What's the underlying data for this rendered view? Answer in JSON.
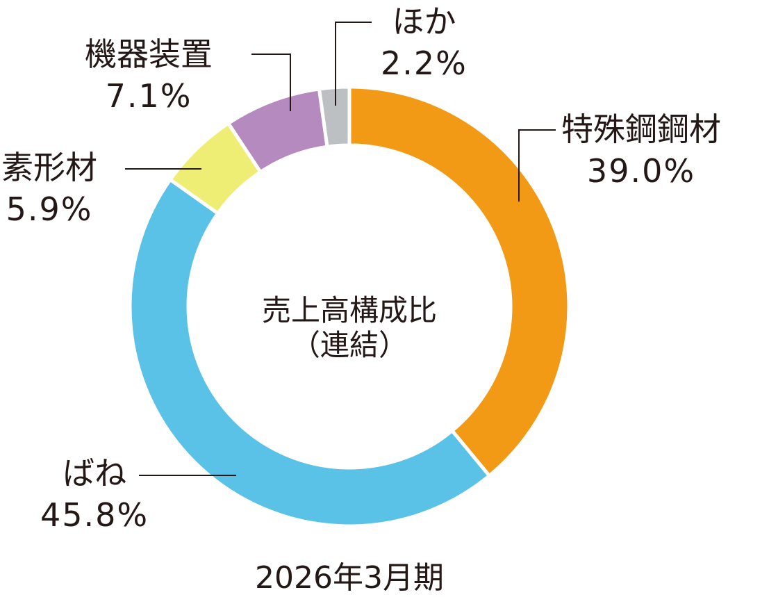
{
  "chart_data": {
    "type": "pie",
    "center_label": {
      "line1": "売上高構成比",
      "line2": "（連結）"
    },
    "period": "2026年3月期",
    "slices": [
      {
        "name": "特殊鋼鋼材",
        "value": 39.0,
        "label": "39.0%",
        "color": "#F29A16"
      },
      {
        "name": "ばね",
        "value": 45.8,
        "label": "45.8%",
        "color": "#5AC2E6"
      },
      {
        "name": "素形材",
        "value": 5.9,
        "label": "5.9%",
        "color": "#EFEE74"
      },
      {
        "name": "機器装置",
        "value": 7.1,
        "label": "7.1%",
        "color": "#B48ABF"
      },
      {
        "name": "ほか",
        "value": 2.2,
        "label": "2.2%",
        "color": "#BDC0C2"
      }
    ]
  }
}
